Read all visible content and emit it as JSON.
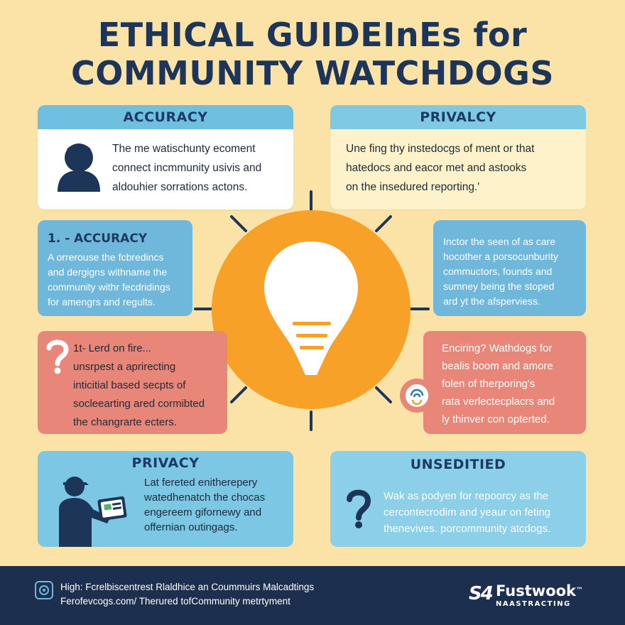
{
  "title": {
    "line1": "ETHICAL GUIDEInEs for",
    "line2": "COMMUNITY WATCHDOGS"
  },
  "cards": {
    "accuracy_top": {
      "heading": "ACCURACY",
      "lines": [
        "The me watischunty ecoment",
        "connect incmmunity usivis and",
        "aldouhier sorrations actons."
      ],
      "icon": "person-icon"
    },
    "privacy_top": {
      "heading": "PRIVALCY",
      "lines": [
        "Une fing thy instedocgs of ment or that",
        "hatedocs and eacor met and astooks",
        "on the insedured reporting.'"
      ]
    },
    "accuracy_2": {
      "heading": "1. - ACCURACY",
      "lines": [
        "A orrerouse the fcbredincs",
        "and dergigns withname the",
        "community withr fecdridings",
        "for amengrs and regults."
      ]
    },
    "info_right": {
      "lines": [
        "Inctor the seen of as care",
        "hocother a porsocunburity",
        "commuctors, founds and",
        "sumney being the stoped",
        "ard yt the afsperviess."
      ]
    },
    "red_left": {
      "lines": [
        "1t- Lerd on fire...",
        "unsrpest a aprirecting",
        "inticitial based secpts of",
        "socleearting ared cormibted",
        "the changrarte ecters."
      ],
      "icon": "question-icon"
    },
    "red_right": {
      "lines": [
        "Enciring? Wathdogs for",
        "bealis boom and amore",
        "folen of therporing's",
        "rata verlectecplacrs and",
        "ly thinver con opterted."
      ],
      "icon": "fingerprint-icon"
    },
    "privacy_bottom": {
      "heading": "PRIVACY",
      "lines": [
        "Lat fereted enitherepery",
        "watedhenatch the chocas",
        "engereem gifornewy and",
        "offernian outingags."
      ],
      "icon": "person-tablet-icon"
    },
    "unsedited": {
      "heading": "UNSEDITIED",
      "lines": [
        "Wak as podyen for repoorcy as the",
        "cercontecrodim and yeaur on feting",
        "thenevives. porcommunity atcdogs."
      ],
      "icon": "question-icon"
    }
  },
  "center": {
    "icon": "lightbulb-icon"
  },
  "footer": {
    "line1": "High: Fcrelbiscentrest Rlaldhice an Coummuirs Malcadtings",
    "line2": "Ferofevcogs.com/ Therured tofCommunity metrtyment",
    "brand_name": "Fustwook",
    "brand_tm": "™",
    "brand_sub": "NAASTRACTING",
    "brand_mark": "S4"
  },
  "colors": {
    "background": "#fbe3a8",
    "navy": "#1d3558",
    "orange": "#f7a128",
    "blue": "#6fb8dc",
    "coral": "#e88679"
  }
}
